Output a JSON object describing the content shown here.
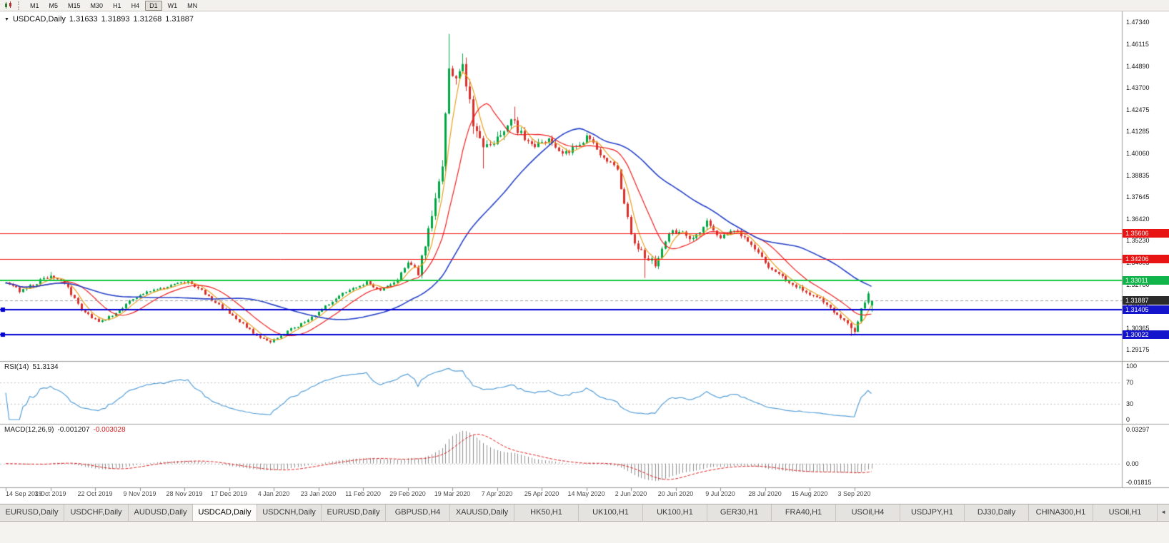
{
  "toolbar": {
    "timeframes": [
      "M1",
      "M5",
      "M15",
      "M30",
      "H1",
      "H4",
      "D1",
      "W1",
      "MN"
    ],
    "active_timeframe": "D1"
  },
  "chart": {
    "title": {
      "symbol": "USDCAD,Daily",
      "open": "1.31633",
      "high": "1.31893",
      "low": "1.31268",
      "close": "1.31887"
    },
    "price_axis": [
      "1.47340",
      "1.46115",
      "1.44890",
      "1.43700",
      "1.42475",
      "1.41285",
      "1.40060",
      "1.38835",
      "1.37645",
      "1.36420",
      "1.35230",
      "1.34005",
      "1.32780",
      "1.31555",
      "1.30365",
      "1.29175"
    ],
    "price_tags": [
      {
        "value": "1.35606",
        "price": 1.35606,
        "color": "#e81414"
      },
      {
        "value": "1.34206",
        "price": 1.34206,
        "color": "#e81414"
      },
      {
        "value": "1.33011",
        "price": 1.33011,
        "color": "#11b44a"
      },
      {
        "value": "1.31887",
        "price": 1.31887,
        "color": "#2b2b2b"
      },
      {
        "value": "1.31405",
        "price": 1.31405,
        "color": "#1414cc"
      },
      {
        "value": "1.30022",
        "price": 1.30022,
        "color": "#1414cc"
      }
    ],
    "hlines": [
      {
        "price": 1.35606,
        "color": "#f51111",
        "width": 1
      },
      {
        "price": 1.34206,
        "color": "#f51111",
        "width": 1
      },
      {
        "price": 1.33011,
        "color": "#0fc83c",
        "width": 2
      },
      {
        "price": 1.31405,
        "color": "#0000d6",
        "width": 2,
        "handle": true
      },
      {
        "price": 1.30022,
        "color": "#0000d6",
        "width": 2,
        "handle": true
      }
    ],
    "current_price": 1.31887,
    "date_axis": [
      "14 Sep 2019",
      "3 Oct 2019",
      "22 Oct 2019",
      "9 Nov 2019",
      "28 Nov 2019",
      "17 Dec 2019",
      "4 Jan 2020",
      "23 Jan 2020",
      "11 Feb 2020",
      "29 Feb 2020",
      "19 Mar 2020",
      "7 Apr 2020",
      "25 Apr 2020",
      "14 May 2020",
      "2 Jun 2020",
      "20 Jun 2020",
      "9 Jul 2020",
      "28 Jul 2020",
      "15 Aug 2020",
      "3 Sep 2020"
    ]
  },
  "rsi": {
    "label": "RSI(14)",
    "value": "51.3134",
    "axis_labels": [
      "100",
      "70",
      "30",
      "0"
    ],
    "levels": [
      70,
      30
    ],
    "color": "#58a0d8"
  },
  "macd": {
    "label": "MACD(12,26,9)",
    "value_main": "-0.001207",
    "value_signal": "-0.003028",
    "axis": [
      {
        "text": "0.03297",
        "value": 0.03297
      },
      {
        "text": "0.00",
        "value": 0
      },
      {
        "text": "-0.01815",
        "value": -0.01815
      }
    ]
  },
  "tabs": {
    "items": [
      "EURUSD,Daily",
      "USDCHF,Daily",
      "AUDUSD,Daily",
      "USDCAD,Daily",
      "USDCNH,Daily",
      "EURUSD,Daily",
      "GBPUSD,H4",
      "XAUUSD,Daily",
      "HK50,H1",
      "UK100,H1",
      "UK100,H1",
      "GER30,H1",
      "FRA40,H1",
      "USOil,H4",
      "USDJPY,H1",
      "DJ30,Daily",
      "CHINA300,H1",
      "USOil,H1"
    ],
    "active_index": 3,
    "scroll_left_icon": "◄"
  },
  "chart_data": {
    "type": "candlestick",
    "symbol": "USDCAD",
    "timeframe": "Daily",
    "candle_count": 253,
    "up_color": "#00a843",
    "down_color": "#d9302c",
    "price_range_visible": [
      1.29175,
      1.4734
    ],
    "current_ohlc_text": "O 1.31633  H 1.31893  L 1.31268  C 1.31887",
    "horizontal_levels": [
      1.35606,
      1.34206,
      1.33011,
      1.31405,
      1.30022
    ],
    "close_keypoints": [
      [
        0,
        1.3285,
        0.002
      ],
      [
        4,
        1.3245,
        0.002
      ],
      [
        9,
        1.329,
        0.0022
      ],
      [
        13,
        1.333,
        0.0024
      ],
      [
        17,
        1.329,
        0.0022
      ],
      [
        22,
        1.314,
        0.002
      ],
      [
        27,
        1.307,
        0.0018
      ],
      [
        31,
        1.3105,
        0.0016
      ],
      [
        36,
        1.3185,
        0.0016
      ],
      [
        42,
        1.3245,
        0.0015
      ],
      [
        48,
        1.327,
        0.0015
      ],
      [
        53,
        1.33,
        0.0016
      ],
      [
        57,
        1.3245,
        0.0017
      ],
      [
        62,
        1.3165,
        0.0017
      ],
      [
        68,
        1.3075,
        0.0015
      ],
      [
        73,
        1.2995,
        0.0013
      ],
      [
        77,
        1.2958,
        0.0012
      ],
      [
        81,
        1.301,
        0.0014
      ],
      [
        86,
        1.306,
        0.0014
      ],
      [
        91,
        1.3125,
        0.0015
      ],
      [
        96,
        1.3205,
        0.0016
      ],
      [
        101,
        1.326,
        0.0016
      ],
      [
        105,
        1.329,
        0.0015
      ],
      [
        109,
        1.3245,
        0.0015
      ],
      [
        113,
        1.3285,
        0.0017
      ],
      [
        117,
        1.3395,
        0.0026
      ],
      [
        120,
        1.3345,
        0.0034
      ],
      [
        124,
        1.366,
        0.0062
      ],
      [
        127,
        1.396,
        0.0085
      ],
      [
        129,
        1.451,
        0.0115
      ],
      [
        131,
        1.439,
        0.0105
      ],
      [
        133,
        1.45,
        0.0095
      ],
      [
        136,
        1.416,
        0.0085
      ],
      [
        139,
        1.401,
        0.007
      ],
      [
        143,
        1.41,
        0.0058
      ],
      [
        147,
        1.42,
        0.0052
      ],
      [
        150,
        1.411,
        0.0048
      ],
      [
        154,
        1.405,
        0.0044
      ],
      [
        158,
        1.409,
        0.004
      ],
      [
        162,
        1.399,
        0.0038
      ],
      [
        166,
        1.404,
        0.0038
      ],
      [
        169,
        1.41,
        0.0038
      ],
      [
        173,
        1.401,
        0.0036
      ],
      [
        178,
        1.3905,
        0.0034
      ],
      [
        182,
        1.3555,
        0.0042
      ],
      [
        186,
        1.343,
        0.004
      ],
      [
        189,
        1.3395,
        0.004
      ],
      [
        193,
        1.356,
        0.0042
      ],
      [
        196,
        1.3585,
        0.0038
      ],
      [
        200,
        1.3525,
        0.0034
      ],
      [
        204,
        1.3625,
        0.0034
      ],
      [
        208,
        1.3545,
        0.003
      ],
      [
        213,
        1.3575,
        0.0029
      ],
      [
        217,
        1.3505,
        0.0028
      ],
      [
        221,
        1.3395,
        0.0027
      ],
      [
        226,
        1.332,
        0.0025
      ],
      [
        230,
        1.327,
        0.0024
      ],
      [
        234,
        1.3225,
        0.0023
      ],
      [
        238,
        1.3185,
        0.0022
      ],
      [
        242,
        1.3115,
        0.0022
      ],
      [
        245,
        1.3055,
        0.0022
      ],
      [
        247,
        1.3015,
        0.0023
      ],
      [
        249,
        1.3135,
        0.0028
      ],
      [
        251,
        1.3235,
        0.0024
      ],
      [
        252,
        1.3189,
        0.002
      ]
    ],
    "spikes": [
      {
        "idx": 13,
        "high": 1.3348
      },
      {
        "idx": 77,
        "low": 1.2951
      },
      {
        "idx": 129,
        "high": 1.4668
      },
      {
        "idx": 133,
        "high": 1.456
      },
      {
        "idx": 139,
        "low": 1.3922
      },
      {
        "idx": 148,
        "high": 1.4265
      },
      {
        "idx": 186,
        "low": 1.3315
      },
      {
        "idx": 246,
        "low": 1.2994
      }
    ],
    "moving_averages": [
      {
        "period": 5,
        "color": "#e8a01e",
        "width": 1.2
      },
      {
        "period": 13,
        "color": "#f02020",
        "width": 1.2
      },
      {
        "period": 40,
        "color": "#2743c8",
        "width": 1.6
      }
    ],
    "ohlc_current": {
      "open": 1.31633,
      "high": 1.31893,
      "low": 1.31268,
      "close": 1.31887
    },
    "indicators": [
      {
        "name": "RSI",
        "period": 14,
        "current": 51.3134,
        "scale": [
          0,
          100
        ],
        "levels": [
          30,
          70
        ]
      },
      {
        "name": "MACD",
        "fast": 12,
        "slow": 26,
        "signal_period": 9,
        "current_main": -0.001207,
        "current_signal": -0.003028,
        "scale": [
          -0.01815,
          0.03297
        ]
      }
    ]
  }
}
